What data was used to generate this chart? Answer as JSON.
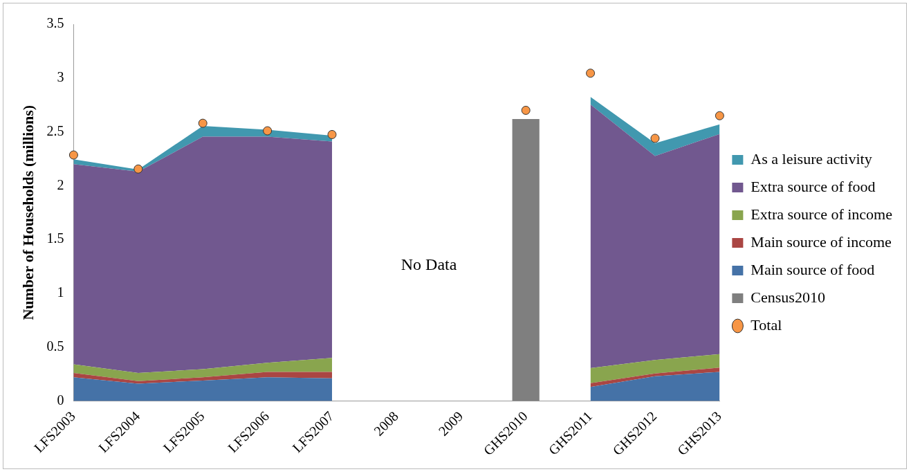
{
  "chart_data": {
    "type": "area",
    "stacked": true,
    "ylabel": "Number of Households (millions)",
    "categories": [
      "LFS2003",
      "LFS2004",
      "LFS2005",
      "LFS2006",
      "LFS2007",
      "2008",
      "2009",
      "GHS2010",
      "GHS2011",
      "GHS2012",
      "GHS2013"
    ],
    "series": [
      {
        "name": "Main source of food",
        "color": "#4572a7",
        "values": [
          0.22,
          0.16,
          0.19,
          0.22,
          0.21,
          null,
          null,
          null,
          0.13,
          0.23,
          0.27
        ]
      },
      {
        "name": "Main source of income",
        "color": "#aa4643",
        "values": [
          0.04,
          0.025,
          0.03,
          0.05,
          0.06,
          null,
          null,
          null,
          0.035,
          0.025,
          0.04
        ]
      },
      {
        "name": "Extra source of income",
        "color": "#89a54e",
        "values": [
          0.08,
          0.075,
          0.075,
          0.085,
          0.13,
          null,
          null,
          null,
          0.14,
          0.125,
          0.125
        ]
      },
      {
        "name": "Extra source of food",
        "color": "#71588f",
        "values": [
          1.86,
          1.87,
          2.16,
          2.1,
          2.01,
          null,
          null,
          null,
          2.45,
          1.895,
          2.045
        ]
      },
      {
        "name": "As a leisure activity",
        "color": "#4198af",
        "values": [
          0.045,
          0.02,
          0.1,
          0.065,
          0.055,
          null,
          null,
          null,
          0.07,
          0.12,
          0.09
        ]
      },
      {
        "name": "Census2010",
        "type": "bar",
        "color": "#7f7f7f",
        "values": [
          null,
          null,
          null,
          null,
          null,
          null,
          null,
          2.62,
          null,
          null,
          null
        ]
      },
      {
        "name": "Total",
        "type": "scatter",
        "color": "#f79646",
        "marker": "circle",
        "values": [
          2.285,
          2.155,
          2.58,
          2.51,
          2.475,
          null,
          null,
          2.7,
          3.045,
          2.44,
          2.65
        ]
      }
    ],
    "ylim": [
      0,
      3.5
    ],
    "yticks": [
      0,
      0.5,
      1,
      1.5,
      2,
      2.5,
      3,
      3.5
    ],
    "grid": false,
    "legend": "right",
    "annotations": [
      "No Data"
    ]
  }
}
